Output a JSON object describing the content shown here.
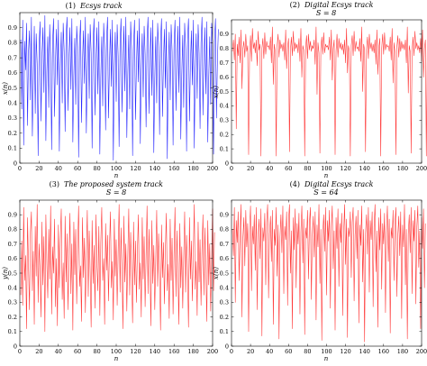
{
  "chart_data": [
    {
      "type": "line",
      "panel": "(1)",
      "title": "Ecsys track",
      "subtitle": "",
      "xlabel": "n",
      "ylabel": "x(n)",
      "xlim": [
        0,
        200
      ],
      "ylim": [
        0,
        1
      ],
      "xticks": [
        0,
        20,
        40,
        60,
        80,
        100,
        120,
        140,
        160,
        180,
        200
      ],
      "yticks": [
        0,
        0.1,
        0.2,
        0.3,
        0.4,
        0.5,
        0.6,
        0.7,
        0.8,
        0.9
      ],
      "color": "#2a2aff",
      "grid": false,
      "series": [
        {
          "x_start": 1,
          "x_step": 1,
          "y": [
            0.82,
            0.36,
            0.95,
            0.12,
            0.81,
            0.62,
            0.93,
            0.25,
            0.74,
            0.88,
            0.42,
            0.97,
            0.18,
            0.55,
            0.91,
            0.33,
            0.86,
            0.66,
            0.05,
            0.78,
            0.94,
            0.28,
            0.72,
            0.9,
            0.47,
            0.98,
            0.15,
            0.6,
            0.84,
            0.37,
            0.92,
            0.7,
            0.09,
            0.8,
            0.96,
            0.31,
            0.68,
            0.89,
            0.52,
            0.95,
            0.08,
            0.63,
            0.87,
            0.4,
            0.93,
            0.74,
            0.21,
            0.85,
            0.97,
            0.35,
            0.7,
            0.9,
            0.49,
            0.96,
            0.14,
            0.58,
            0.83,
            0.39,
            0.91,
            0.77,
            0.04,
            0.79,
            0.95,
            0.27,
            0.67,
            0.88,
            0.53,
            0.97,
            0.2,
            0.61,
            0.86,
            0.43,
            0.92,
            0.73,
            0.1,
            0.81,
            0.96,
            0.32,
            0.69,
            0.9,
            0.46,
            0.94,
            0.06,
            0.57,
            0.84,
            0.38,
            0.93,
            0.76,
            0.22,
            0.82,
            0.97,
            0.3,
            0.66,
            0.89,
            0.51,
            0.95,
            0.02,
            0.64,
            0.87,
            0.41,
            0.92,
            0.71,
            0.11,
            0.8,
            0.96,
            0.34,
            0.68,
            0.91,
            0.48,
            0.97,
            0.17,
            0.59,
            0.85,
            0.36,
            0.94,
            0.75,
            0.05,
            0.78,
            0.95,
            0.29,
            0.65,
            0.88,
            0.54,
            0.96,
            0.13,
            0.62,
            0.86,
            0.44,
            0.91,
            0.72,
            0.24,
            0.83,
            0.97,
            0.33,
            0.7,
            0.9,
            0.45,
            0.95,
            0.07,
            0.56,
            0.84,
            0.4,
            0.93,
            0.77,
            0.19,
            0.81,
            0.96,
            0.31,
            0.67,
            0.89,
            0.5,
            0.94,
            0.03,
            0.6,
            0.87,
            0.42,
            0.92,
            0.74,
            0.12,
            0.79,
            0.95,
            0.35,
            0.69,
            0.91,
            0.47,
            0.97,
            0.16,
            0.58,
            0.85,
            0.37,
            0.93,
            0.76,
            0.08,
            0.82,
            0.96,
            0.28,
            0.66,
            0.88,
            0.52,
            0.95,
            0.1,
            0.63,
            0.86,
            0.43,
            0.92,
            0.73,
            0.23,
            0.8,
            0.97,
            0.32,
            0.7,
            0.9,
            0.46,
            0.94,
            0.14,
            0.57,
            0.84,
            0.39,
            0.93,
            0.78,
            0.06,
            0.81,
            0.96,
            0.3,
            0.68,
            0.89
          ]
        }
      ]
    },
    {
      "type": "line",
      "panel": "(2)",
      "title": "Digital Ecsys track",
      "subtitle": "S = 8",
      "xlabel": "n",
      "ylabel": "x(n)",
      "xlim": [
        0,
        200
      ],
      "ylim": [
        0,
        1
      ],
      "xticks": [
        0,
        20,
        40,
        60,
        80,
        100,
        120,
        140,
        160,
        180,
        200
      ],
      "yticks": [
        0,
        0.1,
        0.2,
        0.3,
        0.4,
        0.5,
        0.6,
        0.7,
        0.8,
        0.9
      ],
      "color": "#ff3b3b",
      "grid": false,
      "series": [
        {
          "x_start": 1,
          "x_step": 1,
          "y": [
            0.78,
            0.86,
            0.72,
            0.9,
            0.24,
            0.83,
            0.75,
            0.88,
            0.7,
            0.93,
            0.52,
            0.8,
            0.85,
            0.74,
            0.9,
            0.78,
            0.82,
            0.06,
            0.76,
            0.89,
            0.71,
            0.94,
            0.8,
            0.84,
            0.77,
            0.86,
            0.68,
            0.92,
            0.79,
            0.83,
            0.05,
            0.8,
            0.87,
            0.73,
            0.91,
            0.76,
            0.85,
            0.81,
            0.82,
            0.79,
            0.88,
            0.7,
            0.95,
            0.55,
            0.83,
            0.78,
            0.05,
            0.82,
            0.9,
            0.74,
            0.86,
            0.8,
            0.83,
            0.78,
            0.84,
            0.72,
            0.93,
            0.66,
            0.81,
            0.87,
            0.08,
            0.79,
            0.88,
            0.75,
            0.92,
            0.78,
            0.84,
            0.8,
            0.83,
            0.77,
            0.87,
            0.71,
            0.94,
            0.6,
            0.82,
            0.79,
            0.05,
            0.81,
            0.89,
            0.73,
            0.9,
            0.79,
            0.85,
            0.78,
            0.82,
            0.8,
            0.86,
            0.69,
            0.95,
            0.48,
            0.84,
            0.77,
            0.07,
            0.8,
            0.88,
            0.76,
            0.91,
            0.77,
            0.83,
            0.81,
            0.82,
            0.79,
            0.88,
            0.72,
            0.93,
            0.58,
            0.8,
            0.86,
            0.06,
            0.78,
            0.9,
            0.74,
            0.87,
            0.8,
            0.84,
            0.79,
            0.83,
            0.76,
            0.86,
            0.7,
            0.94,
            0.63,
            0.82,
            0.78,
            0.05,
            0.82,
            0.89,
            0.75,
            0.92,
            0.78,
            0.85,
            0.8,
            0.81,
            0.78,
            0.87,
            0.71,
            0.95,
            0.5,
            0.83,
            0.79,
            0.08,
            0.79,
            0.88,
            0.73,
            0.9,
            0.8,
            0.84,
            0.78,
            0.83,
            0.77,
            0.86,
            0.69,
            0.93,
            0.62,
            0.81,
            0.87,
            0.05,
            0.8,
            0.9,
            0.76,
            0.91,
            0.79,
            0.83,
            0.81,
            0.82,
            0.78,
            0.88,
            0.72,
            0.94,
            0.56,
            0.84,
            0.77,
            0.06,
            0.81,
            0.89,
            0.74,
            0.87,
            0.78,
            0.85,
            0.8,
            0.83,
            0.79,
            0.86,
            0.7,
            0.95,
            0.49,
            0.82,
            0.78,
            0.07,
            0.79,
            0.88,
            0.75,
            0.92,
            0.8,
            0.84,
            0.79,
            0.82,
            0.77,
            0.87,
            0.71,
            0.93,
            0.6,
            0.8,
            0.86,
            0.05,
            0.82
          ]
        }
      ]
    },
    {
      "type": "line",
      "panel": "(3)",
      "title": "The proposed system track",
      "subtitle": "S = 8",
      "xlabel": "n",
      "ylabel": "y(n)",
      "xlim": [
        0,
        200
      ],
      "ylim": [
        0,
        1
      ],
      "xticks": [
        0,
        20,
        40,
        60,
        80,
        100,
        120,
        140,
        160,
        180,
        200
      ],
      "yticks": [
        0,
        0.1,
        0.2,
        0.3,
        0.4,
        0.5,
        0.6,
        0.7,
        0.8,
        0.9
      ],
      "color": "#ff3b3b",
      "grid": false,
      "series": [
        {
          "x_start": 1,
          "x_step": 1,
          "y": [
            0.35,
            0.72,
            0.28,
            0.95,
            0.45,
            0.62,
            0.12,
            0.88,
            0.55,
            0.25,
            0.78,
            0.92,
            0.38,
            0.65,
            0.15,
            0.82,
            0.48,
            0.97,
            0.3,
            0.7,
            0.52,
            0.2,
            0.85,
            0.42,
            0.75,
            0.1,
            0.9,
            0.58,
            0.33,
            0.8,
            0.46,
            0.96,
            0.22,
            0.68,
            0.5,
            0.87,
            0.27,
            0.6,
            0.14,
            0.83,
            0.4,
            0.73,
            0.94,
            0.32,
            0.57,
            0.19,
            0.89,
            0.44,
            0.77,
            0.25,
            0.62,
            0.91,
            0.36,
            0.7,
            0.11,
            0.85,
            0.49,
            0.8,
            0.29,
            0.66,
            0.96,
            0.41,
            0.55,
            0.17,
            0.88,
            0.47,
            0.74,
            0.23,
            0.63,
            0.93,
            0.34,
            0.79,
            0.5,
            0.13,
            0.86,
            0.43,
            0.69,
            0.26,
            0.9,
            0.56,
            0.38,
            0.82,
            0.21,
            0.71,
            0.95,
            0.45,
            0.6,
            0.15,
            0.84,
            0.52,
            0.76,
            0.31,
            0.67,
            0.92,
            0.4,
            0.58,
            0.18,
            0.87,
            0.48,
            0.73,
            0.28,
            0.64,
            0.97,
            0.37,
            0.81,
            0.53,
            0.12,
            0.89,
            0.44,
            0.7,
            0.24,
            0.61,
            0.94,
            0.35,
            0.78,
            0.5,
            0.16,
            0.85,
            0.42,
            0.72,
            0.3,
            0.65,
            0.9,
            0.39,
            0.57,
            0.2,
            0.88,
            0.46,
            0.75,
            0.27,
            0.62,
            0.96,
            0.36,
            0.8,
            0.54,
            0.14,
            0.86,
            0.43,
            0.69,
            0.25,
            0.59,
            0.93,
            0.41,
            0.77,
            0.49,
            0.11,
            0.83,
            0.47,
            0.71,
            0.29,
            0.66,
            0.91,
            0.38,
            0.56,
            0.19,
            0.87,
            0.45,
            0.74,
            0.22,
            0.63,
            0.95,
            0.34,
            0.79,
            0.52,
            0.15,
            0.84,
            0.4,
            0.68,
            0.26,
            0.6,
            0.92,
            0.37,
            0.76,
            0.51,
            0.13,
            0.88,
            0.46,
            0.72,
            0.31,
            0.64,
            0.97,
            0.39,
            0.58,
            0.21,
            0.85,
            0.44,
            0.73,
            0.28,
            0.67,
            0.9,
            0.35,
            0.81,
            0.53,
            0.17,
            0.86,
            0.42,
            0.7,
            0.24,
            0.61,
            0.94,
            0.38,
            0.78
          ]
        }
      ]
    },
    {
      "type": "line",
      "panel": "(4)",
      "title": "Digital Ecsys track",
      "subtitle": "S = 64",
      "xlabel": "n",
      "ylabel": "x(n)",
      "xlim": [
        0,
        200
      ],
      "ylim": [
        0,
        1
      ],
      "xticks": [
        0,
        20,
        40,
        60,
        80,
        100,
        120,
        140,
        160,
        180,
        200
      ],
      "yticks": [
        0,
        0.1,
        0.2,
        0.3,
        0.4,
        0.5,
        0.6,
        0.7,
        0.8,
        0.9
      ],
      "color": "#ff3b3b",
      "grid": false,
      "series": [
        {
          "x_start": 1,
          "x_step": 1,
          "y": [
            0.8,
            0.62,
            0.95,
            0.3,
            0.86,
            0.71,
            0.92,
            0.45,
            0.78,
            0.97,
            0.2,
            0.74,
            0.88,
            0.55,
            0.93,
            0.68,
            0.84,
            0.1,
            0.79,
            0.96,
            0.38,
            0.82,
            0.7,
            0.9,
            0.52,
            0.95,
            0.25,
            0.76,
            0.87,
            0.6,
            0.94,
            0.07,
            0.81,
            0.72,
            0.91,
            0.42,
            0.85,
            0.97,
            0.33,
            0.77,
            0.89,
            0.58,
            0.93,
            0.15,
            0.8,
            0.69,
            0.95,
            0.48,
            0.83,
            0.05,
            0.75,
            0.9,
            0.64,
            0.96,
            0.36,
            0.82,
            0.73,
            0.92,
            0.28,
            0.86,
            0.97,
            0.5,
            0.79,
            0.12,
            0.88,
            0.66,
            0.94,
            0.4,
            0.84,
            0.7,
            0.91,
            0.22,
            0.78,
            0.96,
            0.57,
            0.87,
            0.08,
            0.81,
            0.74,
            0.93,
            0.46,
            0.85,
            0.95,
            0.32,
            0.76,
            0.89,
            0.61,
            0.92,
            0.18,
            0.83,
            0.68,
            0.97,
            0.43,
            0.8,
            0.04,
            0.77,
            0.9,
            0.65,
            0.95,
            0.35,
            0.86,
            0.72,
            0.93,
            0.26,
            0.82,
            0.96,
            0.53,
            0.79,
            0.11,
            0.88,
            0.67,
            0.94,
            0.41,
            0.84,
            0.71,
            0.91,
            0.21,
            0.78,
            0.97,
            0.56,
            0.87,
            0.06,
            0.81,
            0.75,
            0.92,
            0.47,
            0.85,
            0.95,
            0.31,
            0.76,
            0.89,
            0.6,
            0.93,
            0.16,
            0.83,
            0.69,
            0.96,
            0.44,
            0.8,
            0.03,
            0.77,
            0.9,
            0.63,
            0.95,
            0.37,
            0.86,
            0.73,
            0.92,
            0.27,
            0.82,
            0.97,
            0.51,
            0.79,
            0.13,
            0.88,
            0.66,
            0.94,
            0.39,
            0.84,
            0.7,
            0.91,
            0.23,
            0.78,
            0.96,
            0.58,
            0.87,
            0.09,
            0.81,
            0.74,
            0.93,
            0.45,
            0.85,
            0.95,
            0.34,
            0.76,
            0.89,
            0.62,
            0.92,
            0.19,
            0.83,
            0.68,
            0.97,
            0.42,
            0.8,
            0.05,
            0.77,
            0.9,
            0.64,
            0.95,
            0.36,
            0.86,
            0.72,
            0.93,
            0.29,
            0.82,
            0.96,
            0.54,
            0.79,
            0.12,
            0.88,
            0.67,
            0.94,
            0.4,
            0.84
          ]
        }
      ]
    }
  ]
}
